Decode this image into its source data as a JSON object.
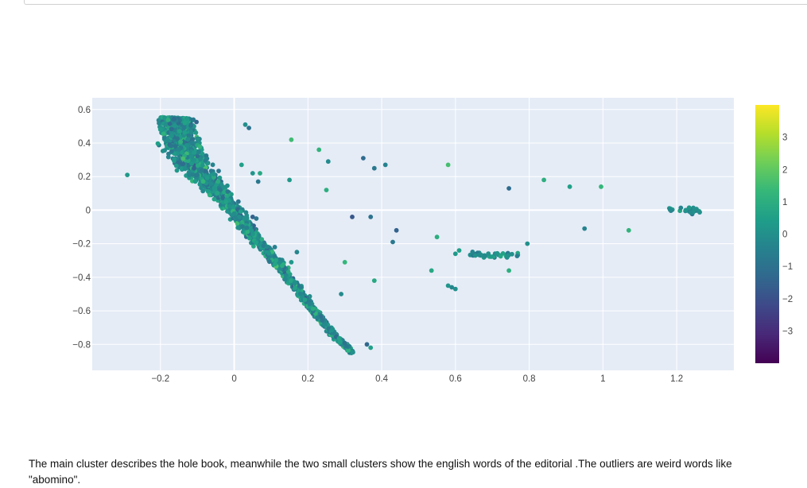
{
  "caption": "The main cluster describes the hole book, meanwhile the two small clusters show the english words of the editorial .The outliers are weird words like \"abomino\".",
  "chart_data": {
    "type": "scatter",
    "title": "",
    "xlabel": "",
    "ylabel": "",
    "xlim": [
      -0.385,
      1.355
    ],
    "ylim": [
      -0.955,
      0.67
    ],
    "x_ticks": [
      -0.2,
      0,
      0.2,
      0.4,
      0.6,
      0.8,
      1,
      1.2
    ],
    "x_tick_labels": [
      "−0.2",
      "0",
      "0.2",
      "0.4",
      "0.6",
      "0.8",
      "1",
      "1.2"
    ],
    "y_ticks": [
      0.6,
      0.4,
      0.2,
      0,
      -0.2,
      -0.4,
      -0.6,
      -0.8
    ],
    "y_tick_labels": [
      "0.6",
      "0.4",
      "0.2",
      "0",
      "−0.2",
      "−0.4",
      "−0.6",
      "−0.8"
    ],
    "grid": true,
    "colorscale": "Viridis",
    "color_range": [
      -4,
      4
    ],
    "colorbar_ticks": [
      3,
      2,
      1,
      0,
      -1,
      -2,
      -3
    ],
    "colorbar_tick_labels": [
      "3",
      "2",
      "1",
      "0",
      "−1",
      "−2",
      "−3"
    ],
    "colors": {
      "plot_background": "#e5ecf6",
      "grid": "#ffffff",
      "viridis": [
        "#440154",
        "#482878",
        "#3e4989",
        "#31688e",
        "#26828e",
        "#1f9e89",
        "#35b779",
        "#6ece58",
        "#b5de2b",
        "#fde725"
      ]
    },
    "points": [
      {
        "x": -0.29,
        "y": 0.21,
        "c": 0.3
      },
      {
        "x": 0.155,
        "y": 0.42,
        "c": 1.5
      },
      {
        "x": 0.23,
        "y": 0.36,
        "c": 1.2
      },
      {
        "x": 0.255,
        "y": 0.29,
        "c": -0.2
      },
      {
        "x": 0.25,
        "y": 0.12,
        "c": 1.0
      },
      {
        "x": 0.15,
        "y": 0.18,
        "c": 0.3
      },
      {
        "x": 0.05,
        "y": 0.22,
        "c": 0.2
      },
      {
        "x": 0.07,
        "y": 0.22,
        "c": 0.8
      },
      {
        "x": 0.065,
        "y": 0.17,
        "c": -0.8
      },
      {
        "x": 0.02,
        "y": 0.27,
        "c": 0.5
      },
      {
        "x": 0.35,
        "y": 0.31,
        "c": -1.2
      },
      {
        "x": 0.38,
        "y": 0.25,
        "c": -0.8
      },
      {
        "x": 0.41,
        "y": 0.27,
        "c": -0.4
      },
      {
        "x": 0.32,
        "y": -0.04,
        "c": -1.8
      },
      {
        "x": 0.37,
        "y": -0.04,
        "c": -1.0
      },
      {
        "x": 0.44,
        "y": -0.12,
        "c": -1.5
      },
      {
        "x": 0.43,
        "y": -0.19,
        "c": -0.8
      },
      {
        "x": 0.3,
        "y": -0.31,
        "c": 1.3
      },
      {
        "x": 0.38,
        "y": -0.42,
        "c": 0.8
      },
      {
        "x": 0.29,
        "y": -0.5,
        "c": -0.2
      },
      {
        "x": 0.36,
        "y": -0.8,
        "c": -1.3
      },
      {
        "x": 0.37,
        "y": -0.82,
        "c": 0.5
      },
      {
        "x": 0.58,
        "y": 0.27,
        "c": 1.6
      },
      {
        "x": 0.745,
        "y": 0.13,
        "c": -1.2
      },
      {
        "x": 0.84,
        "y": 0.18,
        "c": 1.0
      },
      {
        "x": 0.91,
        "y": 0.14,
        "c": 0.5
      },
      {
        "x": 0.995,
        "y": 0.14,
        "c": 1.3
      },
      {
        "x": 0.95,
        "y": -0.11,
        "c": -0.4
      },
      {
        "x": 1.07,
        "y": -0.12,
        "c": 1.2
      },
      {
        "x": 0.55,
        "y": -0.16,
        "c": 1.0
      },
      {
        "x": 0.535,
        "y": -0.36,
        "c": 0.8
      },
      {
        "x": 0.58,
        "y": -0.45,
        "c": 0.2
      },
      {
        "x": 0.59,
        "y": -0.46,
        "c": -0.3
      },
      {
        "x": 0.6,
        "y": -0.47,
        "c": 0.0
      },
      {
        "x": 0.6,
        "y": -0.26,
        "c": 0.3
      },
      {
        "x": 0.61,
        "y": -0.24,
        "c": 0.5
      },
      {
        "x": 0.795,
        "y": -0.2,
        "c": 0.0
      },
      {
        "x": 0.745,
        "y": -0.36,
        "c": 1.0
      },
      {
        "x": 0.06,
        "y": -0.05,
        "c": -0.8
      },
      {
        "x": 0.05,
        "y": -0.04,
        "c": -1.5
      },
      {
        "x": 0.11,
        "y": -0.22,
        "c": -0.5
      },
      {
        "x": 0.17,
        "y": -0.25,
        "c": -0.3
      },
      {
        "x": 0.155,
        "y": -0.31,
        "c": 0.3
      },
      {
        "x": 0.04,
        "y": 0.49,
        "c": -1.0
      },
      {
        "x": 0.03,
        "y": 0.51,
        "c": 0.0
      }
    ],
    "main_cluster": {
      "count": 2200,
      "spine": [
        [
          -0.155,
          0.55
        ],
        [
          -0.16,
          0.45
        ],
        [
          -0.12,
          0.3
        ],
        [
          -0.06,
          0.15
        ],
        [
          0.0,
          0.0
        ],
        [
          0.05,
          -0.15
        ],
        [
          0.13,
          -0.35
        ],
        [
          0.2,
          -0.55
        ],
        [
          0.26,
          -0.72
        ],
        [
          0.32,
          -0.85
        ]
      ],
      "width": [
        0.07,
        0.09,
        0.08,
        0.05,
        0.035,
        0.03,
        0.022,
        0.018,
        0.015,
        0.01
      ]
    },
    "small_clusters": [
      {
        "count": 40,
        "x_range": [
          0.64,
          0.77
        ],
        "y_center": -0.27,
        "y_spread": 0.025
      },
      {
        "count": 25,
        "x_range": [
          1.18,
          1.265
        ],
        "y_center": 0.0,
        "y_spread": 0.03
      }
    ]
  }
}
